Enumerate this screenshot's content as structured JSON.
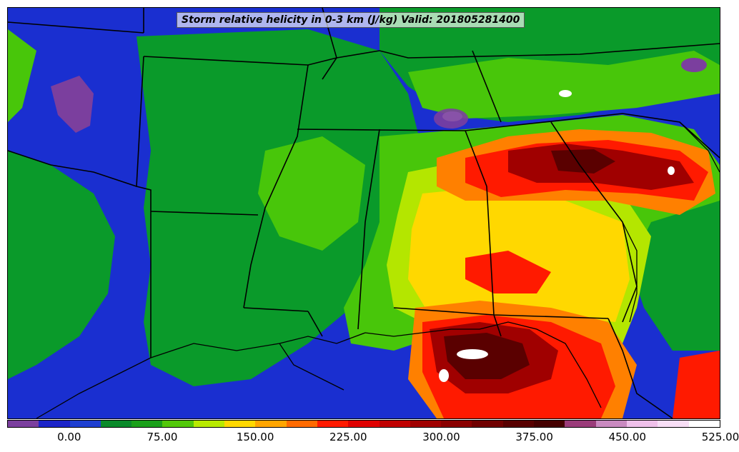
{
  "title": "Storm relative helicity in 0-3 km (J/kg) Valid: 201805281400",
  "colorbar": {
    "colors": [
      "#7b3f9e",
      "#1c24c8",
      "#1e3fd0",
      "#0a8a2a",
      "#1aa01a",
      "#52c80a",
      "#b8ea00",
      "#ffd800",
      "#ffa500",
      "#ff6a00",
      "#ff1a00",
      "#e00000",
      "#c00000",
      "#a00000",
      "#8a0000",
      "#700000",
      "#580000",
      "#450000",
      "#9a3c7a",
      "#c98ac0",
      "#efc0ea",
      "#f8def6",
      "#ffffff"
    ],
    "tick_labels": [
      "0.00",
      "75.00",
      "150.00",
      "225.00",
      "300.00",
      "375.00",
      "450.00",
      "525.00"
    ]
  },
  "map_colors": {
    "background": "#1a2fd0",
    "green": "#0a9a2a",
    "light_green": "#48c60a",
    "yellow_green": "#b4e600",
    "yellow": "#ffd800",
    "orange": "#ff8000",
    "red": "#ff1a00",
    "dark_red": "#a00000",
    "maroon": "#5a0000",
    "purple": "#7b3f9e",
    "white": "#ffffff",
    "border": "#000000"
  }
}
